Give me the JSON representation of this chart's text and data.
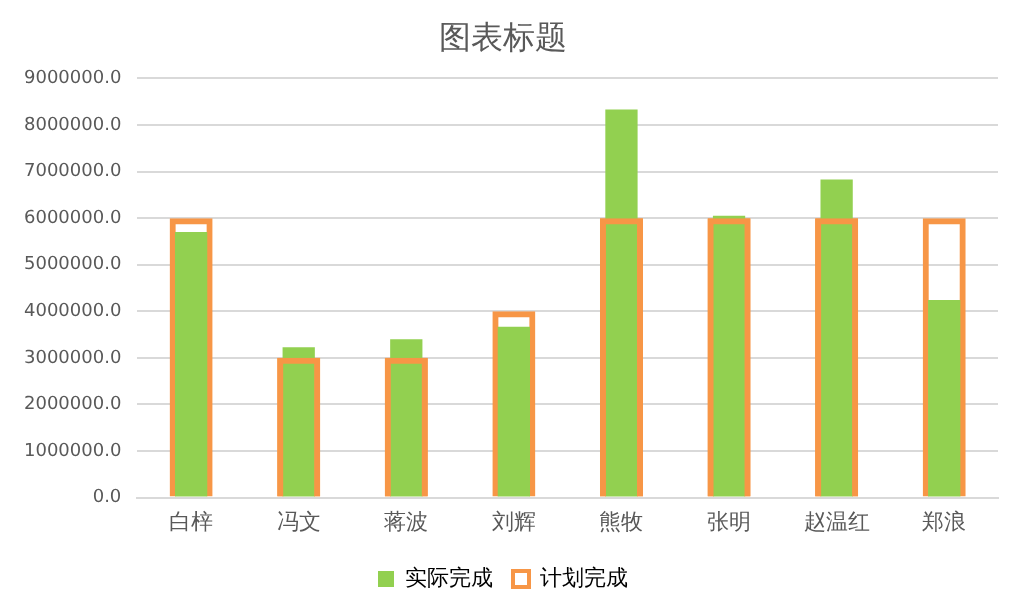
{
  "chart_data": {
    "type": "bar",
    "title": "图表标题",
    "categories": [
      "白梓",
      "冯文",
      "蒋波",
      "刘辉",
      "熊牧",
      "张明",
      "赵温红",
      "郑浪"
    ],
    "series": [
      {
        "name": "实际完成",
        "color": "#92d050",
        "values": [
          5700000,
          3230000,
          3400000,
          3670000,
          8330000,
          6050000,
          6830000,
          4240000
        ]
      },
      {
        "name": "计划完成",
        "color": "#f79646",
        "values": [
          6000000,
          3000000,
          3000000,
          4000000,
          6000000,
          6000000,
          6000000,
          6000000
        ]
      }
    ],
    "ylim": [
      0,
      9000000
    ],
    "yticks": [
      {
        "value": 0,
        "label": "0.0"
      },
      {
        "value": 1000000,
        "label": "1000000.0"
      },
      {
        "value": 2000000,
        "label": "2000000.0"
      },
      {
        "value": 3000000,
        "label": "3000000.0"
      },
      {
        "value": 4000000,
        "label": "4000000.0"
      },
      {
        "value": 5000000,
        "label": "5000000.0"
      },
      {
        "value": 6000000,
        "label": "6000000.0"
      },
      {
        "value": 7000000,
        "label": "7000000.0"
      },
      {
        "value": 8000000,
        "label": "8000000.0"
      },
      {
        "value": 9000000,
        "label": "9000000.0"
      }
    ],
    "grid": "y",
    "legend": "bottom"
  }
}
